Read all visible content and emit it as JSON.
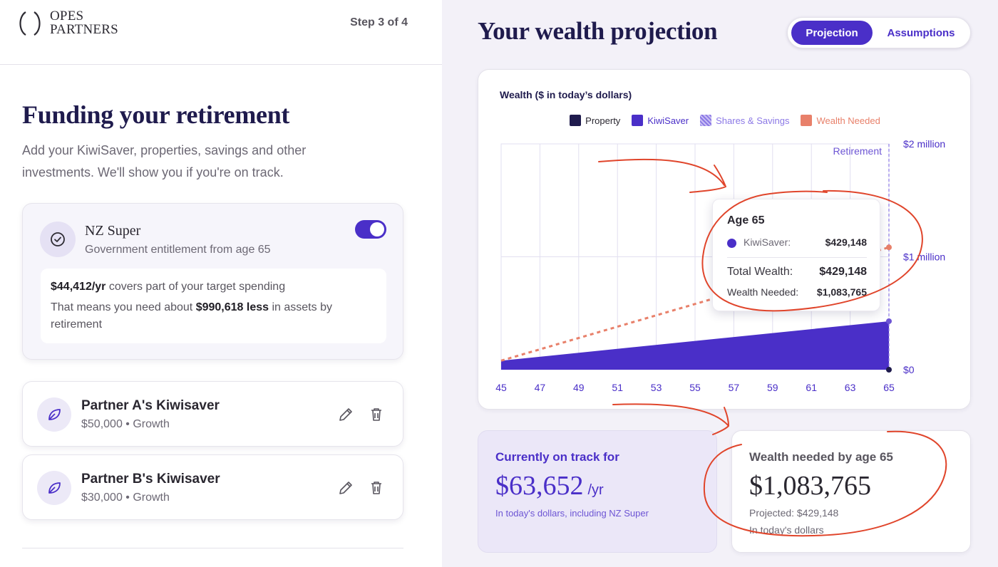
{
  "header": {
    "logo_line1": "OPES",
    "logo_line2": "PARTNERS",
    "step": "Step 3 of 4"
  },
  "left": {
    "title": "Funding your retirement",
    "subtitle": "Add your KiwiSaver, properties, savings and other investments. We'll show you if you're on track.",
    "nz_super": {
      "icon": "check-circle-icon",
      "title": "NZ Super",
      "subtitle": "Government entitlement from age 65",
      "toggle_on": true,
      "amount": "$44,412/yr",
      "amount_suffix": " covers part of your target spending",
      "means_prefix": "That means you need about ",
      "means_amount": "$990,618 less",
      "means_suffix": " in assets by retirement"
    },
    "kiwisavers": [
      {
        "name": "Partner A's Kiwisaver",
        "detail": "$50,000 • Growth",
        "icon": "leaf-icon"
      },
      {
        "name": "Partner B's Kiwisaver",
        "detail": "$30,000 • Growth",
        "icon": "leaf-icon"
      }
    ]
  },
  "right": {
    "title": "Your wealth projection",
    "tabs": {
      "projection": "Projection",
      "assumptions": "Assumptions",
      "active": "Projection"
    },
    "tooltip": {
      "title": "Age 65",
      "series_label": "KiwiSaver:",
      "series_value": "$429,148",
      "total_label": "Total Wealth:",
      "total_value": "$429,148",
      "needed_label": "Wealth Needed:",
      "needed_value": "$1,083,765"
    },
    "ontrack": {
      "label": "Currently on track for",
      "value": "$63,652",
      "unit": "/yr",
      "note": "In today's dollars, including NZ Super"
    },
    "needed": {
      "label": "Wealth needed by age 65",
      "value": "$1,083,765",
      "projected": "Projected: $429,148",
      "note": "In today's dollars"
    }
  },
  "colors": {
    "brand": "#1f1b4d",
    "accent": "#4a2fc8",
    "property": "#1f1b4d",
    "kiwisaver": "#4a2fc8",
    "shares": "#8b78e6",
    "needed": "#e8806a",
    "annotation": "#e0452b"
  },
  "chart_data": {
    "type": "area",
    "title": "Wealth ($ in today’s dollars)",
    "legend": [
      {
        "name": "Property",
        "color": "#1f1b4d",
        "pattern": "solid"
      },
      {
        "name": "KiwiSaver",
        "color": "#4a2fc8",
        "pattern": "solid"
      },
      {
        "name": "Shares & Savings",
        "color": "#8b78e6",
        "pattern": "hatched"
      },
      {
        "name": "Wealth Needed",
        "color": "#e8806a",
        "pattern": "solid"
      }
    ],
    "x": [
      45,
      47,
      49,
      51,
      53,
      55,
      57,
      59,
      61,
      63,
      65
    ],
    "x_ticks": [
      "45",
      "47",
      "49",
      "51",
      "53",
      "55",
      "57",
      "59",
      "61",
      "63",
      "65"
    ],
    "y_ticks": [
      "$0",
      "$1 million",
      "$2 million"
    ],
    "ylim": [
      0,
      2000000
    ],
    "xlim": [
      45,
      65
    ],
    "series": [
      {
        "name": "KiwiSaver",
        "type": "area",
        "x": [
          45,
          65
        ],
        "values": [
          80000,
          429148
        ]
      },
      {
        "name": "Wealth Needed",
        "type": "dashed-line",
        "x": [
          45,
          65
        ],
        "values": [
          80000,
          1083765
        ]
      }
    ],
    "markers": [
      {
        "series": "Property",
        "x": 65,
        "value": 0
      },
      {
        "series": "KiwiSaver",
        "x": 65,
        "value": 429148
      },
      {
        "series": "Wealth Needed",
        "x": 65,
        "value": 1083765
      }
    ],
    "vline": {
      "x": 65,
      "label": "Retirement"
    },
    "grid": true
  }
}
